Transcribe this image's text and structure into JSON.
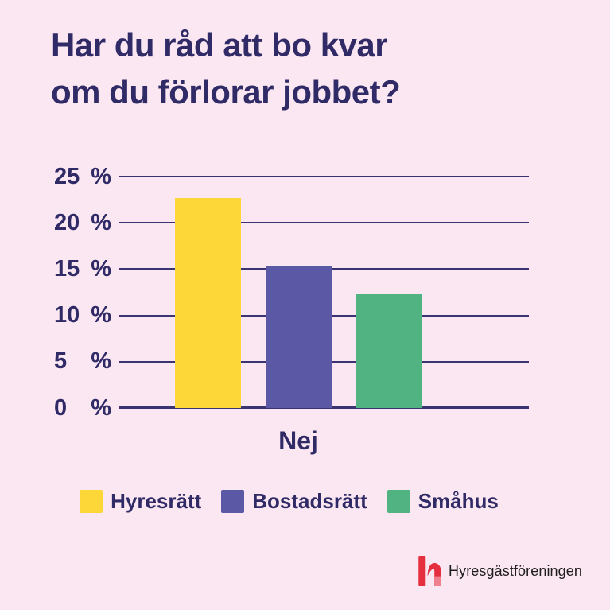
{
  "theme": {
    "bg": "#FAE7F2",
    "ink": "#302B66",
    "grid": "#3A3473",
    "logo_text": "#1F1D1D"
  },
  "page": {
    "title": "Har du råd att bo kvar\nom du förlorar jobbet?"
  },
  "chart_data": {
    "type": "bar",
    "title": "Har du råd att bo kvar om du förlorar jobbet?",
    "x_category": "Nej",
    "xlabel": "",
    "ylabel": "",
    "unit": "%",
    "ylim": [
      0,
      25
    ],
    "yticks": [
      25,
      20,
      15,
      10,
      5,
      0
    ],
    "grid": "horizontal",
    "legend_position": "bottom",
    "series": [
      {
        "name": "Hyresrätt",
        "value": 22.7,
        "color": "#FDD637"
      },
      {
        "name": "Bostadsrätt",
        "value": 15.4,
        "color": "#5B58A6"
      },
      {
        "name": "Småhus",
        "value": 12.3,
        "color": "#50B381"
      }
    ]
  },
  "footer": {
    "brand": "Hyresgästföreningen",
    "logo_colors": {
      "red": "#E62F3E",
      "pink": "#EF8090"
    }
  }
}
